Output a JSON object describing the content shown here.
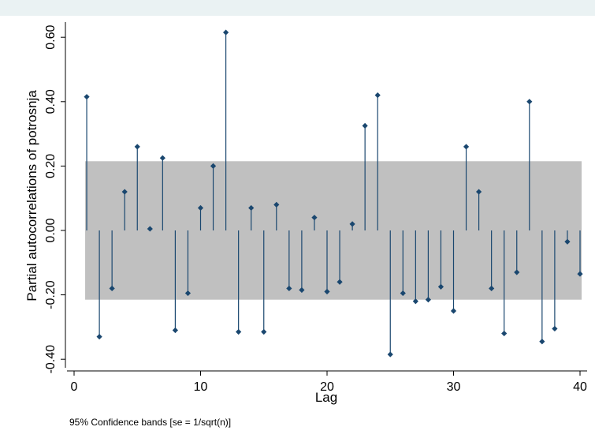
{
  "chart_data": {
    "type": "scatter",
    "subtype": "stem",
    "xlabel": "Lag",
    "ylabel": "Partial autocorrelations of potrosnja",
    "note": "95% Confidence bands [se = 1/sqrt(n)]",
    "xlim": [
      0,
      40
    ],
    "ylim": [
      -0.42,
      0.64
    ],
    "xticks": [
      0,
      10,
      20,
      30,
      40
    ],
    "xtick_labels": [
      "0",
      "10",
      "20",
      "30",
      "40"
    ],
    "yticks": [
      -0.4,
      -0.2,
      0,
      0.2,
      0.4,
      0.6
    ],
    "ytick_labels": [
      "-0.40",
      "-0.20",
      "0.00",
      "0.20",
      "0.40",
      "0.60"
    ],
    "confidence_band": [
      -0.215,
      0.215
    ],
    "grid": false,
    "colors": {
      "marker": "#1a476f",
      "band": "#c0c0c0",
      "background": "#ffffff",
      "outer_background": "#eaf2f3"
    },
    "series": [
      {
        "x": [
          1,
          2,
          3,
          4,
          5,
          6,
          7,
          8,
          9,
          10,
          11,
          12,
          13,
          14,
          15,
          16,
          17,
          18,
          19,
          20,
          21,
          22,
          23,
          24,
          25,
          26,
          27,
          28,
          29,
          30,
          31,
          32,
          33,
          34,
          35,
          36,
          37,
          38,
          39,
          40
        ],
        "values": [
          0.415,
          -0.33,
          -0.18,
          0.12,
          0.26,
          0.005,
          0.225,
          -0.31,
          -0.195,
          0.07,
          0.2,
          0.615,
          -0.315,
          0.07,
          -0.315,
          0.08,
          -0.18,
          -0.185,
          0.04,
          -0.19,
          -0.16,
          0.02,
          0.325,
          0.42,
          -0.385,
          -0.195,
          -0.22,
          -0.215,
          -0.175,
          -0.25,
          0.26,
          0.12,
          -0.18,
          -0.32,
          -0.13,
          0.4,
          -0.345,
          -0.305,
          -0.035,
          -0.135
        ]
      }
    ]
  }
}
